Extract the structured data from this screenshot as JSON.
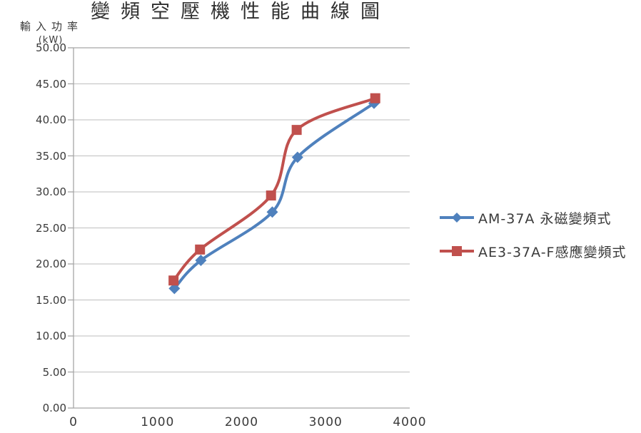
{
  "title": "變頻空壓機性能曲線圖",
  "y_axis": {
    "line1": "輸入功率",
    "line2": "(kW)"
  },
  "colors": {
    "series1_blue": "#4F81BD",
    "series2_red": "#C0504D",
    "gridline": "#C9C9C9",
    "axis_border": "#A6A6A6",
    "text": "#3a3a3a"
  },
  "legend": [
    {
      "label": "AM-37A 永磁變頻式",
      "marker": "diamond",
      "color": "#4F81BD"
    },
    {
      "label": "AE3-37A-F感應變頻式",
      "marker": "square",
      "color": "#C0504D"
    }
  ],
  "chart_data": {
    "type": "line",
    "title": "變頻空壓機性能曲線圖",
    "xlabel": "",
    "ylabel": "輸入功率 (kW)",
    "xlim": [
      0,
      4000
    ],
    "ylim": [
      0,
      50
    ],
    "x_ticks": [
      "0",
      "1000",
      "2000",
      "3000",
      "4000"
    ],
    "x_tick_values": [
      0,
      1000,
      2000,
      3000,
      4000
    ],
    "y_ticks": [
      "0.00",
      "5.00",
      "10.00",
      "15.00",
      "20.00",
      "25.00",
      "30.00",
      "35.00",
      "40.00",
      "45.00",
      "50.00"
    ],
    "y_tick_values": [
      0,
      5,
      10,
      15,
      20,
      25,
      30,
      35,
      40,
      45,
      50
    ],
    "grid": "horizontal",
    "legend_position": "right",
    "smooth_lines": true,
    "series": [
      {
        "name": "AM-37A 永磁變頻式",
        "color": "#4F81BD",
        "marker": "diamond",
        "points": [
          [
            1200,
            16.6
          ],
          [
            1515,
            20.5
          ],
          [
            2365,
            27.2
          ],
          [
            2665,
            34.8
          ],
          [
            3575,
            42.3
          ]
        ]
      },
      {
        "name": "AE3-37A-F感應變頻式",
        "color": "#C0504D",
        "marker": "square",
        "points": [
          [
            1190,
            17.7
          ],
          [
            1505,
            22.0
          ],
          [
            2350,
            29.5
          ],
          [
            2655,
            38.6
          ],
          [
            3590,
            43.0
          ]
        ]
      }
    ]
  }
}
